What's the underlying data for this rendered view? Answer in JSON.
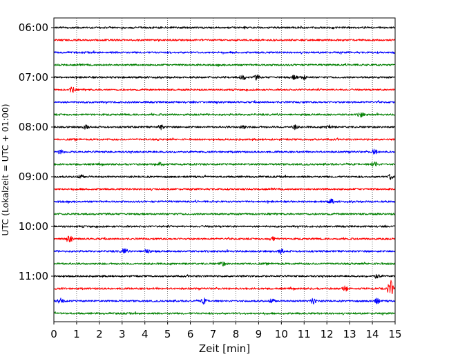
{
  "chart_data": {
    "type": "line",
    "title": "",
    "xlabel": "Zeit  [min]",
    "ylabel": "UTC (Lokalzeit = UTC + 01:00)",
    "xlim": [
      0,
      15
    ],
    "x_ticks": [
      "0",
      "1",
      "2",
      "3",
      "4",
      "5",
      "6",
      "7",
      "8",
      "9",
      "10",
      "11",
      "12",
      "13",
      "14",
      "15"
    ],
    "y_tick_labels": [
      "06:00",
      "07:00",
      "08:00",
      "09:00",
      "10:00",
      "11:00"
    ],
    "grid": "vertical dotted",
    "trace_interval_minutes": 15,
    "traces": [
      {
        "start": "06:00",
        "color": "#000000"
      },
      {
        "start": "06:15",
        "color": "#ff0000"
      },
      {
        "start": "06:30",
        "color": "#0000ff"
      },
      {
        "start": "06:45",
        "color": "#008000"
      },
      {
        "start": "07:00",
        "color": "#000000"
      },
      {
        "start": "07:15",
        "color": "#ff0000"
      },
      {
        "start": "07:30",
        "color": "#0000ff"
      },
      {
        "start": "07:45",
        "color": "#008000"
      },
      {
        "start": "08:00",
        "color": "#000000"
      },
      {
        "start": "08:15",
        "color": "#ff0000"
      },
      {
        "start": "08:30",
        "color": "#0000ff"
      },
      {
        "start": "08:45",
        "color": "#008000"
      },
      {
        "start": "09:00",
        "color": "#000000"
      },
      {
        "start": "09:15",
        "color": "#ff0000"
      },
      {
        "start": "09:30",
        "color": "#0000ff"
      },
      {
        "start": "09:45",
        "color": "#008000"
      },
      {
        "start": "10:00",
        "color": "#000000"
      },
      {
        "start": "10:15",
        "color": "#ff0000"
      },
      {
        "start": "10:30",
        "color": "#0000ff"
      },
      {
        "start": "10:45",
        "color": "#008000"
      },
      {
        "start": "11:00",
        "color": "#000000"
      },
      {
        "start": "11:15",
        "color": "#ff0000"
      },
      {
        "start": "11:30",
        "color": "#0000ff"
      },
      {
        "start": "11:45",
        "color": "#008000"
      }
    ]
  }
}
